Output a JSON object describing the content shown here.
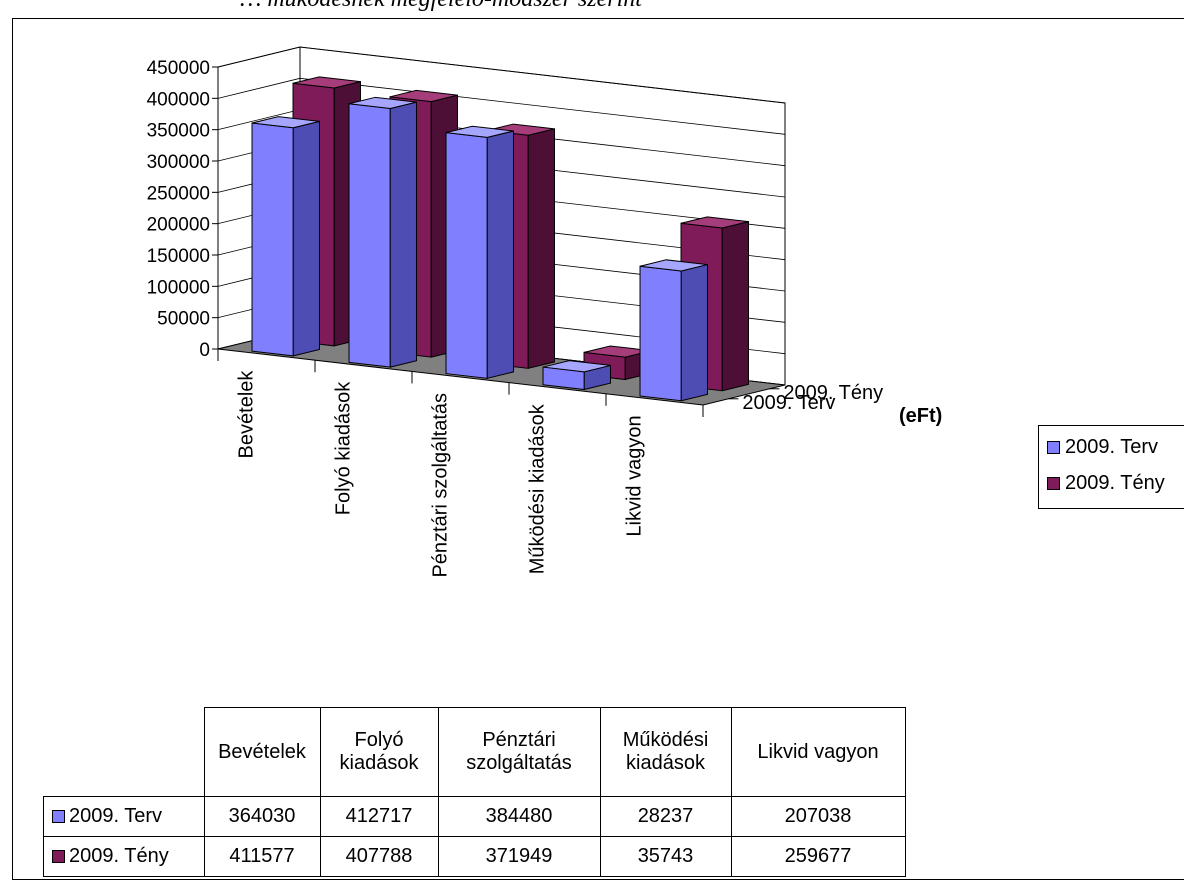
{
  "caption": "… működésnek megfelelő-módszer szerint",
  "unit_label": "(eFt)",
  "colors": {
    "terv": "#8080ff",
    "terv_side": "#4d4db3",
    "terv_top": "#a6a6ff",
    "teny": "#801b5a",
    "teny_side": "#4d0f36",
    "teny_top": "#a63d7b",
    "floor": "#808080",
    "wall": "#ffffff"
  },
  "chart_data": {
    "type": "bar",
    "categories": [
      "Bevételek",
      "Folyó kiadások",
      "Pénztári szolgáltatás",
      "Működési kiadások",
      "Likvid vagyon"
    ],
    "series": [
      {
        "name": "2009. Terv",
        "values": [
          364030,
          412717,
          384480,
          28237,
          207038
        ]
      },
      {
        "name": "2009. Tény",
        "values": [
          411577,
          407788,
          371949,
          35743,
          259677
        ]
      }
    ],
    "yticks": [
      "0",
      "50000",
      "100000",
      "150000",
      "200000",
      "250000",
      "300000",
      "350000",
      "400000",
      "450000"
    ],
    "ylim": [
      0,
      450000
    ],
    "legend_position": "right",
    "grid": true
  },
  "table": {
    "headers": [
      "Bevételek",
      "Folyó kiadások",
      "Pénztári szolgáltatás",
      "Működési kiadások",
      "Likvid vagyon"
    ],
    "rows": [
      {
        "label": "2009. Terv",
        "values": [
          "364030",
          "412717",
          "384480",
          "28237",
          "207038"
        ]
      },
      {
        "label": "2009. Tény",
        "values": [
          "411577",
          "407788",
          "371949",
          "35743",
          "259677"
        ]
      }
    ]
  }
}
